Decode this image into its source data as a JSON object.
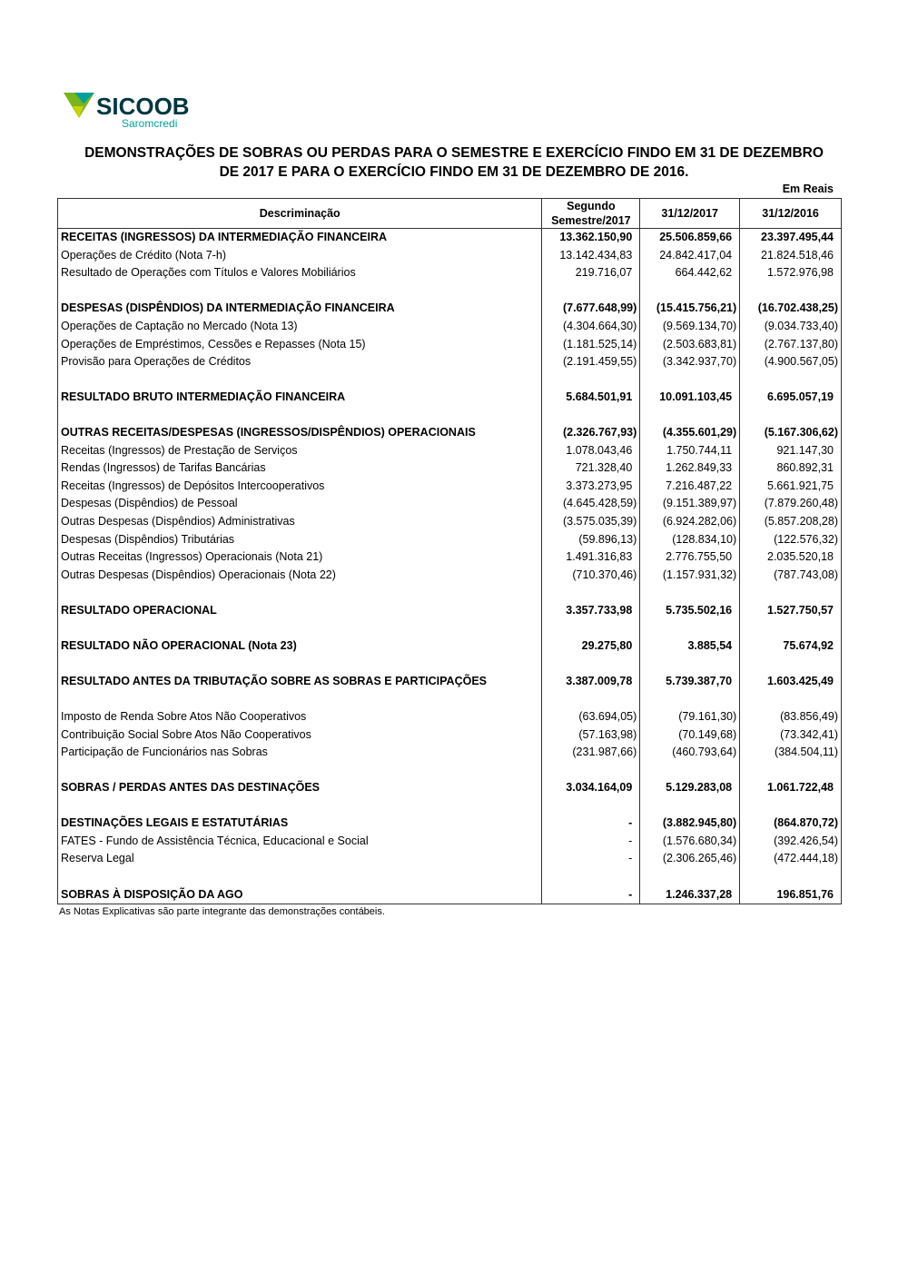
{
  "logo": {
    "brand": "SICOOB",
    "sub": "Saromcredi",
    "colors": {
      "green": "#7ab51d",
      "teal": "#00a19a",
      "dark": "#003641"
    }
  },
  "title_line1": "DEMONSTRAÇÕES DE SOBRAS OU PERDAS PARA O SEMESTRE E EXERCÍCIO FINDO EM 31 DE DEZEMBRO",
  "title_line2": "DE 2017 E PARA O EXERCÍCIO FINDO EM 31 DE DEZEMBRO DE 2016.",
  "unit": "Em Reais",
  "headers": {
    "desc": "Descriminação",
    "c1a": "Segundo",
    "c1b": "Semestre/2017",
    "c2": "31/12/2017",
    "c3": "31/12/2016"
  },
  "rows": [
    {
      "label": "RECEITAS (INGRESSOS) DA INTERMEDIAÇÃO FINANCEIRA",
      "bold": true,
      "v": [
        "13.362.150,90",
        "25.506.859,66",
        "23.397.495,44"
      ]
    },
    {
      "label": "Operações de Crédito (Nota 7-h)",
      "v": [
        "13.142.434,83",
        "24.842.417,04",
        "21.824.518,46"
      ]
    },
    {
      "label": "Resultado de Operações com Títulos e Valores Mobiliários",
      "v": [
        "219.716,07",
        "664.442,62",
        "1.572.976,98"
      ]
    },
    {
      "blank": true
    },
    {
      "label": "DESPESAS (DISPÊNDIOS) DA INTERMEDIAÇÃO FINANCEIRA",
      "bold": true,
      "v": [
        "(7.677.648,99)",
        "(15.415.756,21)",
        "(16.702.438,25)"
      ]
    },
    {
      "label": "Operações de Captação no Mercado (Nota 13)",
      "v": [
        "(4.304.664,30)",
        "(9.569.134,70)",
        "(9.034.733,40)"
      ]
    },
    {
      "label": "Operações de Empréstimos, Cessões e Repasses (Nota 15)",
      "v": [
        "(1.181.525,14)",
        "(2.503.683,81)",
        "(2.767.137,80)"
      ]
    },
    {
      "label": "Provisão para Operações de Créditos",
      "v": [
        "(2.191.459,55)",
        "(3.342.937,70)",
        "(4.900.567,05)"
      ]
    },
    {
      "blank": true
    },
    {
      "label": "RESULTADO BRUTO INTERMEDIAÇÃO FINANCEIRA",
      "bold": true,
      "v": [
        "5.684.501,91",
        "10.091.103,45",
        "6.695.057,19"
      ]
    },
    {
      "blank": true
    },
    {
      "label": "OUTRAS RECEITAS/DESPESAS (INGRESSOS/DISPÊNDIOS) OPERACIONAIS",
      "bold": true,
      "v": [
        "(2.326.767,93)",
        "(4.355.601,29)",
        "(5.167.306,62)"
      ]
    },
    {
      "label": "Receitas (Ingressos) de Prestação de Serviços",
      "v": [
        "1.078.043,46",
        "1.750.744,11",
        "921.147,30"
      ]
    },
    {
      "label": "Rendas (Ingressos) de Tarifas Bancárias",
      "v": [
        "721.328,40",
        "1.262.849,33",
        "860.892,31"
      ]
    },
    {
      "label": "Receitas (Ingressos) de Depósitos Intercooperativos",
      "v": [
        "3.373.273,95",
        "7.216.487,22",
        "5.661.921,75"
      ]
    },
    {
      "label": "Despesas (Dispêndios) de Pessoal",
      "v": [
        "(4.645.428,59)",
        "(9.151.389,97)",
        "(7.879.260,48)"
      ]
    },
    {
      "label": "Outras Despesas (Dispêndios) Administrativas",
      "v": [
        "(3.575.035,39)",
        "(6.924.282,06)",
        "(5.857.208,28)"
      ]
    },
    {
      "label": "Despesas (Dispêndios) Tributárias",
      "v": [
        "(59.896,13)",
        "(128.834,10)",
        "(122.576,32)"
      ]
    },
    {
      "label": "Outras Receitas (Ingressos) Operacionais (Nota 21)",
      "v": [
        "1.491.316,83",
        "2.776.755,50",
        "2.035.520,18"
      ]
    },
    {
      "label": "Outras Despesas (Dispêndios) Operacionais (Nota 22)",
      "v": [
        "(710.370,46)",
        "(1.157.931,32)",
        "(787.743,08)"
      ]
    },
    {
      "blank": true
    },
    {
      "label": "RESULTADO OPERACIONAL",
      "bold": true,
      "v": [
        "3.357.733,98",
        "5.735.502,16",
        "1.527.750,57"
      ]
    },
    {
      "blank": true
    },
    {
      "label": "RESULTADO NÃO OPERACIONAL (Nota 23)",
      "bold": true,
      "v": [
        "29.275,80",
        "3.885,54",
        "75.674,92"
      ]
    },
    {
      "blank": true
    },
    {
      "label": "RESULTADO ANTES DA TRIBUTAÇÃO SOBRE AS SOBRAS E PARTICIPAÇÕES",
      "bold": true,
      "v": [
        "3.387.009,78",
        "5.739.387,70",
        "1.603.425,49"
      ]
    },
    {
      "blank": true
    },
    {
      "label": "Imposto de Renda Sobre Atos Não Cooperativos",
      "v": [
        "(63.694,05)",
        "(79.161,30)",
        "(83.856,49)"
      ]
    },
    {
      "label": "Contribuição Social Sobre Atos Não Cooperativos",
      "v": [
        "(57.163,98)",
        "(70.149,68)",
        "(73.342,41)"
      ]
    },
    {
      "label": "Participação de Funcionários nas Sobras",
      "v": [
        "(231.987,66)",
        "(460.793,64)",
        "(384.504,11)"
      ]
    },
    {
      "blank": true
    },
    {
      "label": "SOBRAS / PERDAS ANTES DAS DESTINAÇÕES",
      "bold": true,
      "v": [
        "3.034.164,09",
        "5.129.283,08",
        "1.061.722,48"
      ]
    },
    {
      "blank": true
    },
    {
      "label": "DESTINAÇÕES LEGAIS E ESTATUTÁRIAS",
      "bold": true,
      "v": [
        "-",
        "(3.882.945,80)",
        "(864.870,72)"
      ]
    },
    {
      "label": "FATES - Fundo de Assistência Técnica, Educacional e Social",
      "v": [
        "-",
        "(1.576.680,34)",
        "(392.426,54)"
      ]
    },
    {
      "label": "Reserva Legal",
      "v": [
        "-",
        "(2.306.265,46)",
        "(472.444,18)"
      ]
    },
    {
      "blank": true
    },
    {
      "label": "SOBRAS À DISPOSIÇÃO DA AGO",
      "bold": true,
      "v": [
        "-",
        "1.246.337,28",
        "196.851,76"
      ]
    }
  ],
  "note": "As Notas Explicativas são parte integrante das demonstrações contábeis."
}
